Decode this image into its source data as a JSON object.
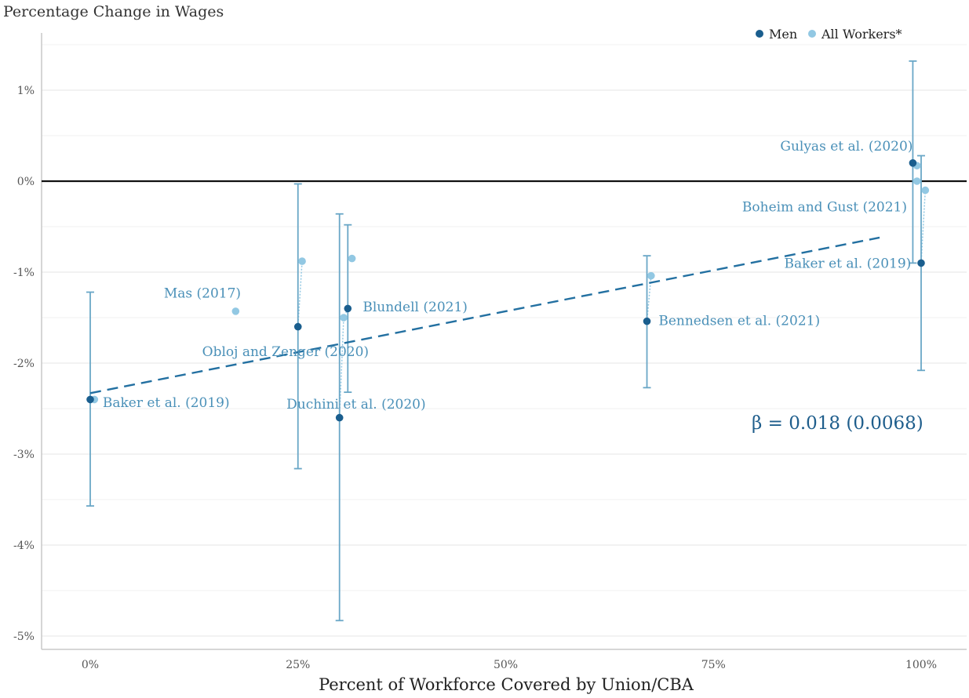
{
  "chart_data": {
    "type": "scatter",
    "title": "Percentage Change in Wages",
    "xlabel": "Percent of Workforce Covered by Union/CBA",
    "ylabel": "",
    "xlim": [
      -5,
      105
    ],
    "ylim": [
      -5.15,
      1.6
    ],
    "xticks": [
      {
        "value": 0,
        "label": "0%"
      },
      {
        "value": 25,
        "label": "25%"
      },
      {
        "value": 50,
        "label": "50%"
      },
      {
        "value": 75,
        "label": "75%"
      },
      {
        "value": 100,
        "label": "100%"
      }
    ],
    "yticks": [
      {
        "value": 1,
        "label": "1%"
      },
      {
        "value": 0,
        "label": "0%"
      },
      {
        "value": -1,
        "label": "-1%"
      },
      {
        "value": -2,
        "label": "-2%"
      },
      {
        "value": -3,
        "label": "-3%"
      },
      {
        "value": -4,
        "label": "-4%"
      },
      {
        "value": -5,
        "label": "-5%"
      }
    ],
    "grid": true,
    "legend_position": "top-right",
    "colors": {
      "men": "#1a5e8e",
      "all": "#92c8e3",
      "errorbar": "#6aa7c7",
      "fit": "#2370a1",
      "label": "#4a90b8"
    },
    "series": [
      {
        "name": "Men",
        "key": "men",
        "points": [
          {
            "x": 0,
            "y": -2.4,
            "lo": -3.57,
            "hi": -1.22
          },
          {
            "x": 25,
            "y": -1.6,
            "lo": -3.16,
            "hi": -0.03
          },
          {
            "x": 30,
            "y": -2.6,
            "lo": -4.83,
            "hi": -0.36
          },
          {
            "x": 31,
            "y": -1.4,
            "lo": -2.32,
            "hi": -0.48
          },
          {
            "x": 67,
            "y": -1.54,
            "lo": -2.27,
            "hi": -0.82
          },
          {
            "x": 99,
            "y": 0.2,
            "lo": -0.9,
            "hi": 1.32
          },
          {
            "x": 100,
            "y": -0.9,
            "lo": -2.08,
            "hi": 0.28
          }
        ]
      },
      {
        "name": "All Workers*",
        "key": "all",
        "points": [
          {
            "x": 0.5,
            "y": -2.4
          },
          {
            "x": 17.5,
            "y": -1.43
          },
          {
            "x": 25.5,
            "y": -0.88
          },
          {
            "x": 30.5,
            "y": -1.5
          },
          {
            "x": 31.5,
            "y": -0.85
          },
          {
            "x": 67.5,
            "y": -1.04
          },
          {
            "x": 99.5,
            "y": 0.17
          },
          {
            "x": 99.5,
            "y": 0.0
          },
          {
            "x": 100.5,
            "y": -0.1
          }
        ]
      }
    ],
    "fit_line": {
      "x0": 0,
      "y0": -2.33,
      "x1": 95,
      "y1": -0.62
    },
    "annotations": [
      {
        "text": "Baker et al. (2019)",
        "x": 1.5,
        "y": -2.43,
        "anchor": "start"
      },
      {
        "text": "Mas (2017)",
        "x": 13.5,
        "y": -1.23,
        "anchor": "middle"
      },
      {
        "text": "Obloj and Zenger (2020)",
        "x": 23.5,
        "y": -1.87,
        "anchor": "middle"
      },
      {
        "text": "Blundell (2021)",
        "x": 32.8,
        "y": -1.38,
        "anchor": "start"
      },
      {
        "text": "Duchini et al. (2020)",
        "x": 32,
        "y": -2.45,
        "anchor": "middle"
      },
      {
        "text": "Bennedsen et al. (2021)",
        "x": 68.4,
        "y": -1.53,
        "anchor": "start"
      },
      {
        "text": "Gulyas et al. (2020)",
        "x": 99,
        "y": 0.39,
        "anchor": "end"
      },
      {
        "text": "Boheim and Gust (2021)",
        "x": 98.3,
        "y": -0.28,
        "anchor": "end"
      },
      {
        "text": "Baker et al. (2019)",
        "x": 98.8,
        "y": -0.9,
        "anchor": "end"
      }
    ],
    "beta_text": "β = 0.018 (0.0068)"
  }
}
